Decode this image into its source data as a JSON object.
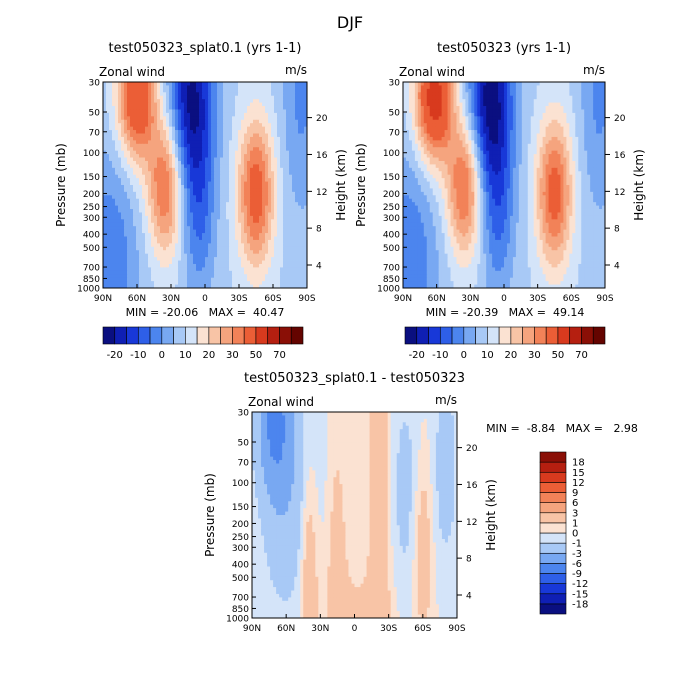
{
  "figure": {
    "title": "DJF"
  },
  "chart_data": [
    {
      "type": "heatmap",
      "title": "test050323_splat0.1 (yrs 1-1)",
      "variable_label": "Zonal wind",
      "units": "m/s",
      "ylabel": "Pressure (mb)",
      "ylabel_right": "Height (km)",
      "x_ticks": [
        "90N",
        "60N",
        "30N",
        "0",
        "30S",
        "60S",
        "90S"
      ],
      "x_tick_values": [
        90,
        60,
        30,
        0,
        -30,
        -60,
        -90
      ],
      "y_ticks": [
        "30",
        "50",
        "70",
        "100",
        "150",
        "200",
        "250",
        "300",
        "400",
        "500",
        "700",
        "850",
        "1000"
      ],
      "y_tick_values": [
        30,
        50,
        70,
        100,
        150,
        200,
        250,
        300,
        400,
        500,
        700,
        850,
        1000
      ],
      "y_scale": "log",
      "right_ticks": [
        "20",
        "16",
        "12",
        "8",
        "4"
      ],
      "right_tick_pressures": [
        55,
        103,
        193,
        361,
        676
      ],
      "stats": "MIN = -20.06   MAX =  40.47",
      "colorbar": {
        "orientation": "horizontal",
        "labels": [
          "-20",
          "-10",
          "0",
          "10",
          "20",
          "30",
          "50",
          "70"
        ],
        "levels": [
          -25,
          -20,
          -15,
          -10,
          -5,
          0,
          5,
          10,
          15,
          20,
          25,
          30,
          40,
          50,
          60,
          70
        ],
        "colors": [
          "#0A0F80",
          "#0F1FB4",
          "#1838D8",
          "#2E5FE8",
          "#4C85EE",
          "#78A8F2",
          "#A8C9F6",
          "#D4E4F9",
          "#FBE2D2",
          "#F8C4A6",
          "#F5A47E",
          "#F28258",
          "#EB5E36",
          "#D83A1E",
          "#B51F10",
          "#8A0F06",
          "#640400"
        ]
      },
      "field": {
        "base_amp": 4,
        "features": [
          {
            "lat": 60,
            "p": 40,
            "amp": 36,
            "width_lat": 12,
            "width_logp": 0.32
          },
          {
            "lat": 35,
            "p": 180,
            "amp": 28,
            "width_lat": 11,
            "width_logp": 0.35
          },
          {
            "lat": -45,
            "p": 200,
            "amp": 31,
            "width_lat": 11,
            "width_logp": 0.38
          },
          {
            "lat": 12,
            "p": 40,
            "amp": -30,
            "width_lat": 14,
            "width_logp": 0.5
          },
          {
            "lat": 5,
            "p": 300,
            "amp": -12,
            "width_lat": 10,
            "width_logp": 0.45
          },
          {
            "lat": 85,
            "p": 700,
            "amp": -14,
            "width_lat": 18,
            "width_logp": 0.6
          },
          {
            "lat": -85,
            "p": 40,
            "amp": -10,
            "width_lat": 12,
            "width_logp": 0.6
          }
        ]
      }
    },
    {
      "type": "heatmap",
      "title": "test050323 (yrs 1-1)",
      "variable_label": "Zonal wind",
      "units": "m/s",
      "ylabel": "Pressure (mb)",
      "ylabel_right": "Height (km)",
      "x_ticks": [
        "90N",
        "60N",
        "30N",
        "0",
        "30S",
        "60S",
        "90S"
      ],
      "x_tick_values": [
        90,
        60,
        30,
        0,
        -30,
        -60,
        -90
      ],
      "y_ticks": [
        "30",
        "50",
        "70",
        "100",
        "150",
        "200",
        "250",
        "300",
        "400",
        "500",
        "700",
        "850",
        "1000"
      ],
      "y_tick_values": [
        30,
        50,
        70,
        100,
        150,
        200,
        250,
        300,
        400,
        500,
        700,
        850,
        1000
      ],
      "y_scale": "log",
      "right_ticks": [
        "20",
        "16",
        "12",
        "8",
        "4"
      ],
      "right_tick_pressures": [
        55,
        103,
        193,
        361,
        676
      ],
      "stats": "MIN = -20.39   MAX =  49.14",
      "colorbar": {
        "orientation": "horizontal",
        "labels": [
          "-20",
          "-10",
          "0",
          "10",
          "20",
          "30",
          "50",
          "70"
        ],
        "levels": [
          -25,
          -20,
          -15,
          -10,
          -5,
          0,
          5,
          10,
          15,
          20,
          25,
          30,
          40,
          50,
          60,
          70
        ],
        "colors": [
          "#0A0F80",
          "#0F1FB4",
          "#1838D8",
          "#2E5FE8",
          "#4C85EE",
          "#78A8F2",
          "#A8C9F6",
          "#D4E4F9",
          "#FBE2D2",
          "#F8C4A6",
          "#F5A47E",
          "#F28258",
          "#EB5E36",
          "#D83A1E",
          "#B51F10",
          "#8A0F06",
          "#640400"
        ]
      },
      "field": {
        "base_amp": 4,
        "features": [
          {
            "lat": 62,
            "p": 40,
            "amp": 42,
            "width_lat": 12,
            "width_logp": 0.32
          },
          {
            "lat": 35,
            "p": 180,
            "amp": 29,
            "width_lat": 11,
            "width_logp": 0.35
          },
          {
            "lat": -45,
            "p": 200,
            "amp": 30,
            "width_lat": 11,
            "width_logp": 0.38
          },
          {
            "lat": 12,
            "p": 40,
            "amp": -32,
            "width_lat": 14,
            "width_logp": 0.5
          },
          {
            "lat": 5,
            "p": 300,
            "amp": -12,
            "width_lat": 10,
            "width_logp": 0.45
          },
          {
            "lat": 85,
            "p": 700,
            "amp": -14,
            "width_lat": 18,
            "width_logp": 0.6
          },
          {
            "lat": -85,
            "p": 40,
            "amp": -10,
            "width_lat": 12,
            "width_logp": 0.6
          }
        ]
      }
    },
    {
      "type": "heatmap",
      "title": "test050323_splat0.1 - test050323",
      "variable_label": "Zonal wind",
      "units": "m/s",
      "ylabel": "Pressure (mb)",
      "ylabel_right": "Height (km)",
      "x_ticks": [
        "90N",
        "60N",
        "30N",
        "0",
        "30S",
        "60S",
        "90S"
      ],
      "x_tick_values": [
        90,
        60,
        30,
        0,
        -30,
        -60,
        -90
      ],
      "y_ticks": [
        "30",
        "50",
        "70",
        "100",
        "150",
        "200",
        "250",
        "300",
        "400",
        "500",
        "700",
        "850",
        "1000"
      ],
      "y_tick_values": [
        30,
        50,
        70,
        100,
        150,
        200,
        250,
        300,
        400,
        500,
        700,
        850,
        1000
      ],
      "y_scale": "log",
      "right_ticks": [
        "20",
        "16",
        "12",
        "8",
        "4"
      ],
      "right_tick_pressures": [
        55,
        103,
        193,
        361,
        676
      ],
      "stats": "MIN =  -8.84   MAX =   2.98",
      "colorbar": {
        "orientation": "vertical",
        "labels": [
          "18",
          "15",
          "12",
          "9",
          "6",
          "3",
          "1",
          "0",
          "-1",
          "-3",
          "-6",
          "-9",
          "-12",
          "-15",
          "-18"
        ],
        "levels": [
          -18,
          -15,
          -12,
          -9,
          -6,
          -3,
          -1,
          0,
          1,
          3,
          6,
          9,
          12,
          15,
          18
        ],
        "colors": [
          "#0A0F80",
          "#0F1FB4",
          "#1838D8",
          "#2E5FE8",
          "#4C85EE",
          "#78A8F2",
          "#A8C9F6",
          "#D4E4F9",
          "#FBE2D2",
          "#F8C4A6",
          "#F5A47E",
          "#F28258",
          "#EB5E36",
          "#D83A1E",
          "#B51F10",
          "#8A0F06"
        ]
      },
      "field": {
        "base_amp": 0,
        "features": [
          {
            "lat": 70,
            "p": 35,
            "amp": -6,
            "width_lat": 10,
            "width_logp": 0.35
          },
          {
            "lat": 60,
            "p": 120,
            "amp": -2.5,
            "width_lat": 15,
            "width_logp": 0.6
          },
          {
            "lat": 40,
            "p": 400,
            "amp": 2.5,
            "width_lat": 5,
            "width_logp": 0.5
          },
          {
            "lat": 15,
            "p": 400,
            "amp": 2.0,
            "width_lat": 5,
            "width_logp": 0.6
          },
          {
            "lat": -22,
            "p": 120,
            "amp": 2.8,
            "width_lat": 6,
            "width_logp": 0.9
          },
          {
            "lat": -60,
            "p": 300,
            "amp": 2.2,
            "width_lat": 6,
            "width_logp": 0.5
          },
          {
            "lat": -45,
            "p": 120,
            "amp": -1.5,
            "width_lat": 10,
            "width_logp": 0.6
          },
          {
            "lat": -80,
            "p": 80,
            "amp": -1.8,
            "width_lat": 8,
            "width_logp": 0.5
          },
          {
            "lat": 0,
            "p": 900,
            "amp": 1.2,
            "width_lat": 25,
            "width_logp": 0.3
          }
        ]
      }
    }
  ]
}
